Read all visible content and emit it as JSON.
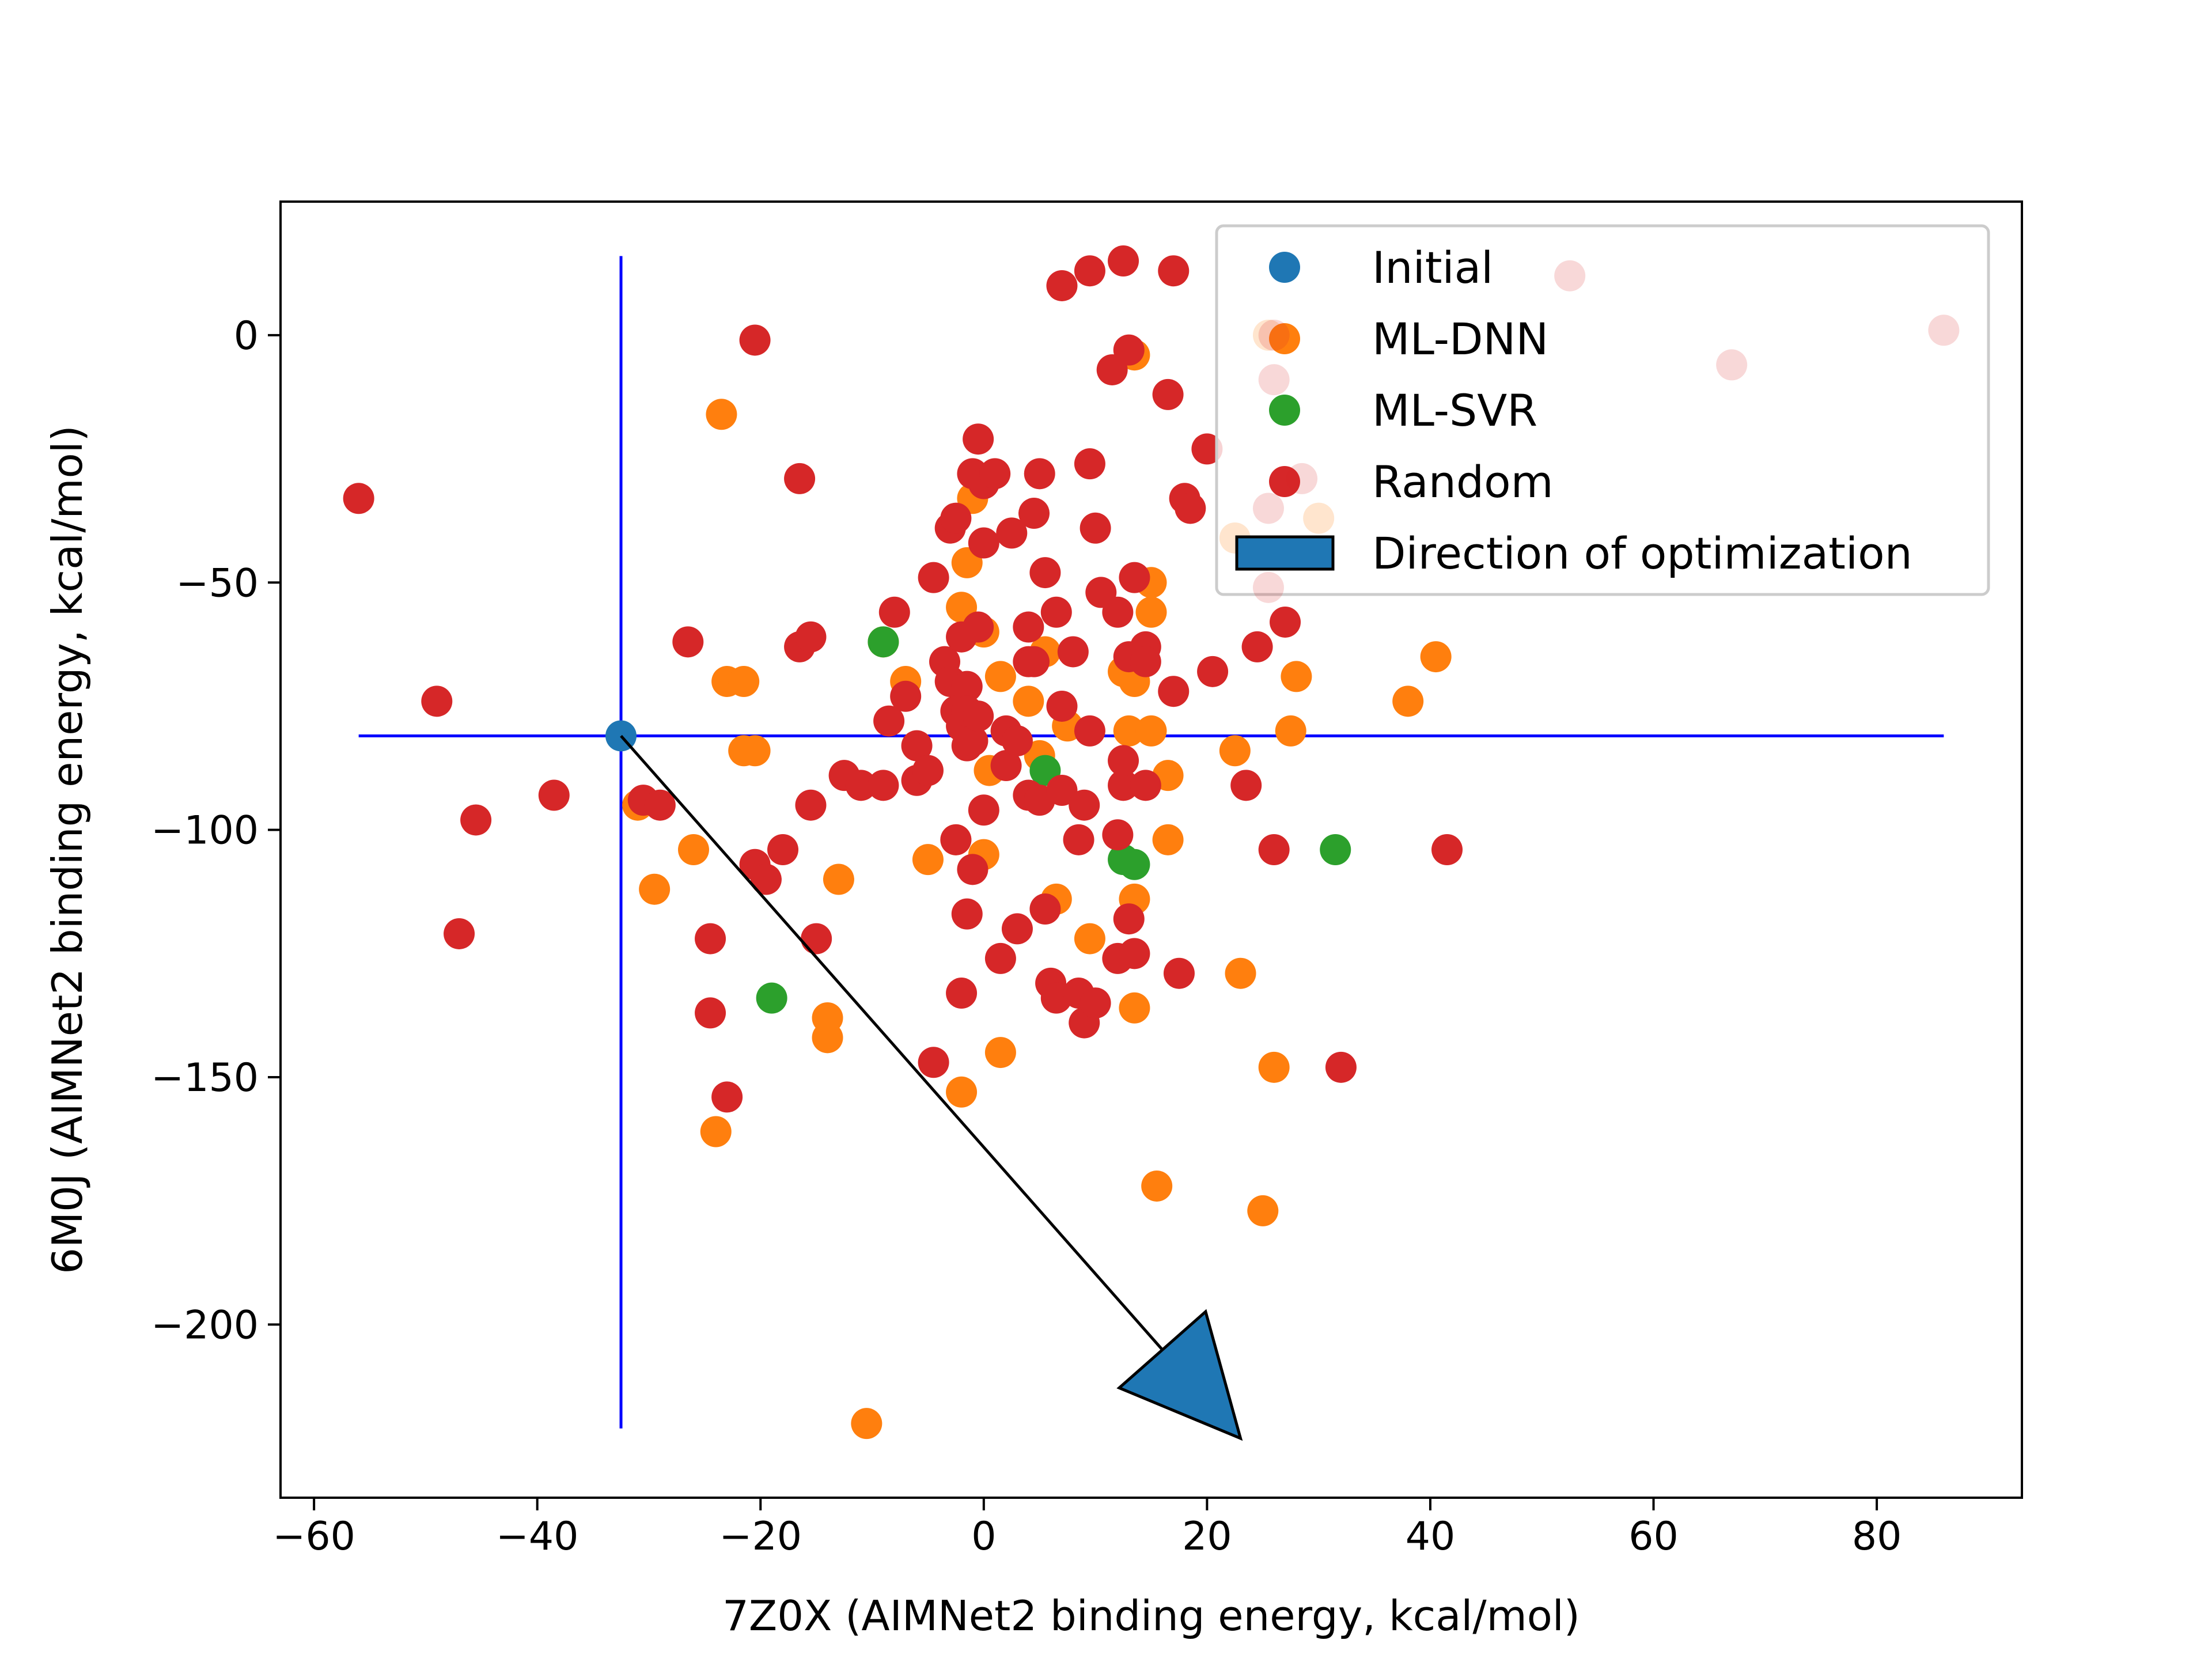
{
  "chart_data": {
    "type": "scatter",
    "xlabel": "7Z0X (AIMNet2 binding energy, kcal/mol)",
    "ylabel": "6M0J (AIMNet2 binding energy, kcal/mol)",
    "xlim": [
      -63,
      93
    ],
    "ylim": [
      -235,
      27
    ],
    "x_ticks": [
      -60,
      -40,
      -20,
      0,
      20,
      40,
      60,
      80
    ],
    "y_ticks": [
      0,
      -50,
      -100,
      -150,
      -200
    ],
    "x_tick_labels": [
      "−60",
      "−40",
      "−20",
      "0",
      "20",
      "40",
      "60",
      "80"
    ],
    "y_tick_labels": [
      "0",
      "−50",
      "−100",
      "−150",
      "−200"
    ],
    "grid": false,
    "legend_position": "top-right",
    "reference_lines": {
      "vertical": {
        "x": -32.5,
        "y_range": [
          -221,
          16
        ],
        "color": "#0000ff"
      },
      "horizontal": {
        "y": -81,
        "x_range": [
          -56,
          86
        ],
        "color": "#0000ff"
      }
    },
    "arrow": {
      "label": "Direction of optimization",
      "from": [
        -32.5,
        -81
      ],
      "to": [
        23,
        -223
      ],
      "head_color": "#1f77b4"
    },
    "series": [
      {
        "name": "Initial",
        "color": "#1f77b4",
        "points": [
          [
            -32.5,
            -81
          ]
        ]
      },
      {
        "name": "ML-DNN",
        "color": "#ff7f0e",
        "points": [
          [
            -23.5,
            -16
          ],
          [
            -23,
            -70
          ],
          [
            -21.5,
            -70
          ],
          [
            -21.5,
            -84
          ],
          [
            -20.5,
            -84
          ],
          [
            -31,
            -95
          ],
          [
            -29.5,
            -112
          ],
          [
            -26,
            -104
          ],
          [
            -24,
            -161
          ],
          [
            -14,
            -138
          ],
          [
            -14,
            -142
          ],
          [
            -13,
            -110
          ],
          [
            -10.5,
            -220
          ],
          [
            -9,
            -62
          ],
          [
            -7,
            -70
          ],
          [
            -5,
            -106
          ],
          [
            -2.5,
            -102
          ],
          [
            -2,
            -153
          ],
          [
            -2,
            -55
          ],
          [
            -1.5,
            -46
          ],
          [
            -1,
            -33
          ],
          [
            0,
            -60
          ],
          [
            0,
            -105
          ],
          [
            0.5,
            -88
          ],
          [
            1.5,
            -69
          ],
          [
            1.5,
            -145
          ],
          [
            4,
            -74
          ],
          [
            5,
            -85
          ],
          [
            5.5,
            -64
          ],
          [
            6.5,
            -114
          ],
          [
            7.5,
            -79
          ],
          [
            9.5,
            -122
          ],
          [
            12.5,
            -68
          ],
          [
            13.5,
            -4
          ],
          [
            13.5,
            -114
          ],
          [
            13,
            -80
          ],
          [
            13.5,
            -136
          ],
          [
            13.5,
            -70
          ],
          [
            15,
            -50
          ],
          [
            15,
            -56
          ],
          [
            15,
            -80
          ],
          [
            15.5,
            -172
          ],
          [
            16.5,
            -89
          ],
          [
            16.5,
            -102
          ],
          [
            22.5,
            -84
          ],
          [
            22.5,
            -41
          ],
          [
            23,
            -129
          ],
          [
            25,
            -177
          ],
          [
            26,
            -148
          ],
          [
            27.5,
            -80
          ],
          [
            28,
            -69
          ],
          [
            38,
            -74
          ],
          [
            40.5,
            -65
          ],
          [
            25.5,
            0
          ],
          [
            30,
            -37
          ]
        ]
      },
      {
        "name": "ML-SVR",
        "color": "#2ca02c",
        "points": [
          [
            -9,
            -62
          ],
          [
            5.5,
            -88
          ],
          [
            12.5,
            -106
          ],
          [
            13.5,
            -107
          ],
          [
            31.5,
            -104
          ],
          [
            -19,
            -134
          ]
        ]
      },
      {
        "name": "Random",
        "color": "#d62728",
        "points": [
          [
            -56,
            -33
          ],
          [
            -49,
            -74
          ],
          [
            -47,
            -121
          ],
          [
            -45.5,
            -98
          ],
          [
            -38.5,
            -93
          ],
          [
            -30.5,
            -94
          ],
          [
            -29,
            -95
          ],
          [
            -26.5,
            -62
          ],
          [
            -24.5,
            -122
          ],
          [
            -24.5,
            -137
          ],
          [
            -23,
            -154
          ],
          [
            -20.5,
            -1
          ],
          [
            -20.5,
            -107
          ],
          [
            -19.5,
            -110
          ],
          [
            -18,
            -104
          ],
          [
            -16.5,
            -29
          ],
          [
            -16.5,
            -63
          ],
          [
            -15.5,
            -61
          ],
          [
            -15.5,
            -95
          ],
          [
            -15,
            -122
          ],
          [
            -12.5,
            -89
          ],
          [
            -11,
            -91
          ],
          [
            -9,
            -91
          ],
          [
            -8.5,
            -78
          ],
          [
            -8,
            -56
          ],
          [
            -7,
            -73
          ],
          [
            -6,
            -83
          ],
          [
            -6,
            -90
          ],
          [
            -5,
            -88
          ],
          [
            -4.5,
            -49
          ],
          [
            -4.5,
            -147
          ],
          [
            -3.5,
            -66
          ],
          [
            -3,
            -39
          ],
          [
            -3,
            -70
          ],
          [
            -2.5,
            -37
          ],
          [
            -2.5,
            -76
          ],
          [
            -2.5,
            -102
          ],
          [
            -2,
            -61
          ],
          [
            -2,
            -79
          ],
          [
            -2,
            -133
          ],
          [
            -1.5,
            -71
          ],
          [
            -1.5,
            -76
          ],
          [
            -1.5,
            -83
          ],
          [
            -1.5,
            -117
          ],
          [
            -1,
            -28
          ],
          [
            -1,
            -82
          ],
          [
            -1,
            -108
          ],
          [
            -0.5,
            -21
          ],
          [
            -0.5,
            -59
          ],
          [
            -0.5,
            -77
          ],
          [
            0,
            -96
          ],
          [
            0,
            -42
          ],
          [
            0,
            -30
          ],
          [
            1,
            -28
          ],
          [
            1.5,
            -126
          ],
          [
            2,
            -87
          ],
          [
            2,
            -80
          ],
          [
            2.5,
            -40
          ],
          [
            3,
            -120
          ],
          [
            3,
            -82
          ],
          [
            4,
            -66
          ],
          [
            4,
            -93
          ],
          [
            4,
            -59
          ],
          [
            4.5,
            -36
          ],
          [
            4.5,
            -66
          ],
          [
            5,
            -28
          ],
          [
            5,
            -94
          ],
          [
            5.5,
            -48
          ],
          [
            5.5,
            -116
          ],
          [
            6,
            -131
          ],
          [
            6.5,
            -134
          ],
          [
            6.5,
            -56
          ],
          [
            7,
            -75
          ],
          [
            7,
            -92
          ],
          [
            7,
            10
          ],
          [
            8,
            -64
          ],
          [
            8.5,
            -102
          ],
          [
            8.5,
            -133
          ],
          [
            9,
            -95
          ],
          [
            9,
            -139
          ],
          [
            9.5,
            -80
          ],
          [
            9.5,
            -26
          ],
          [
            9.5,
            13
          ],
          [
            10,
            -39
          ],
          [
            10,
            -135
          ],
          [
            10.5,
            -52
          ],
          [
            11.5,
            -7
          ],
          [
            12,
            -126
          ],
          [
            12,
            -101
          ],
          [
            12,
            -56
          ],
          [
            12.5,
            15
          ],
          [
            12.5,
            -91
          ],
          [
            12.5,
            -86
          ],
          [
            13,
            -3
          ],
          [
            13,
            -65
          ],
          [
            13,
            -118
          ],
          [
            13.5,
            -49
          ],
          [
            13.5,
            -125
          ],
          [
            14.5,
            -91
          ],
          [
            14.5,
            -63
          ],
          [
            14.5,
            -66
          ],
          [
            16.5,
            -12
          ],
          [
            17,
            13
          ],
          [
            17,
            -72
          ],
          [
            17.5,
            -129
          ],
          [
            18,
            -33
          ],
          [
            18.5,
            -35
          ],
          [
            20,
            -23
          ],
          [
            20.5,
            -68
          ],
          [
            23.5,
            -91
          ],
          [
            24.5,
            -63
          ],
          [
            26,
            -104
          ],
          [
            27,
            -58
          ],
          [
            32,
            -148
          ],
          [
            41.5,
            -104
          ]
        ]
      }
    ],
    "faded_points": [
      [
        52.5,
        12
      ],
      [
        67,
        -6
      ],
      [
        86,
        1
      ],
      [
        26,
        0
      ],
      [
        26,
        -9
      ],
      [
        28.5,
        -29
      ],
      [
        25.5,
        -35
      ],
      [
        25.5,
        -51
      ]
    ]
  }
}
